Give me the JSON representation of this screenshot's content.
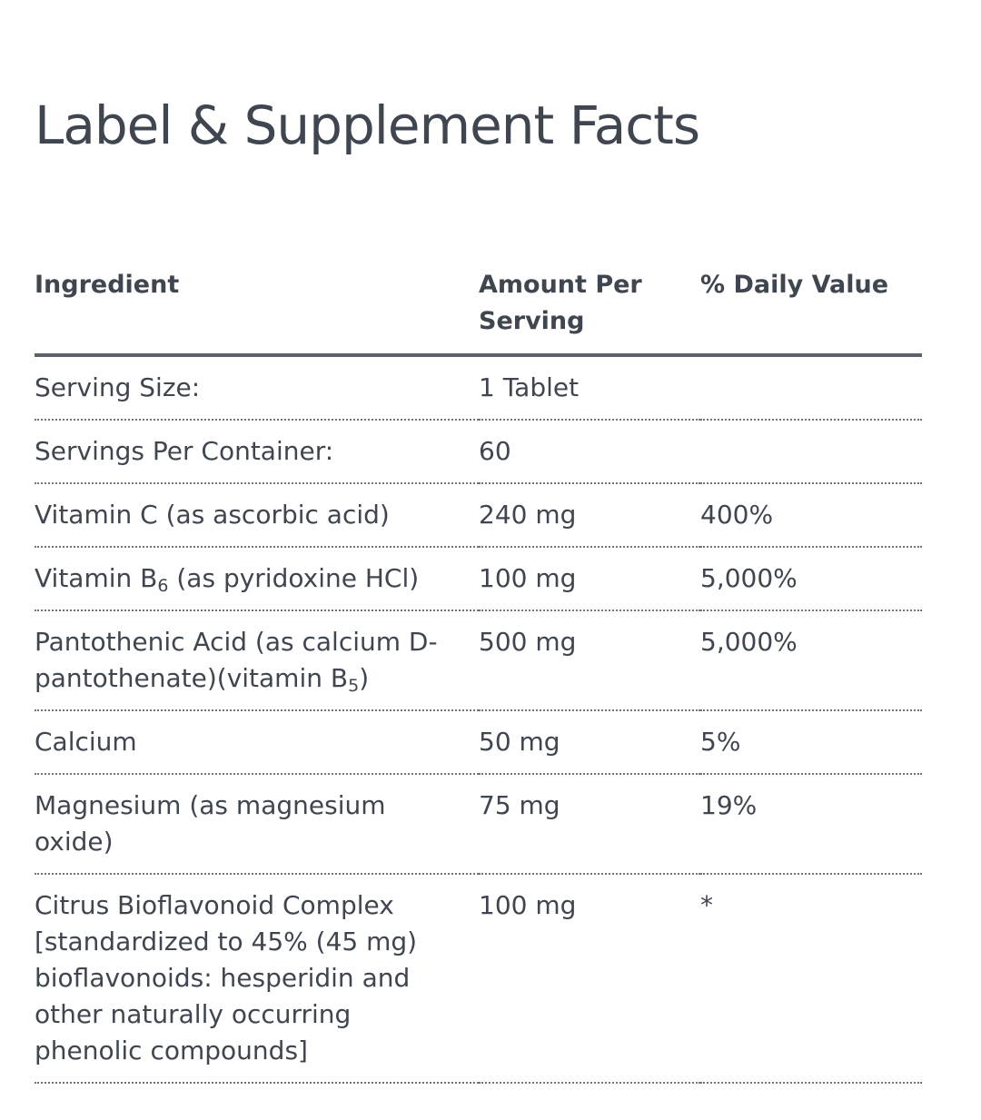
{
  "page": {
    "title": "Label & Supplement Facts"
  },
  "table": {
    "headers": {
      "ingredient": "Ingredient",
      "amount": "Amount Per Serving",
      "daily_value": "% Daily Value"
    },
    "rows": [
      {
        "ingredient": "Serving Size:",
        "amount": "1 Tablet",
        "daily_value": ""
      },
      {
        "ingredient": "Servings Per Container:",
        "amount": "60",
        "daily_value": ""
      },
      {
        "ingredient": "Vitamin C (as ascorbic acid)",
        "amount": "240 mg",
        "daily_value": "400%"
      },
      {
        "ingredient_pre": "Vitamin B",
        "ingredient_sub": "6",
        "ingredient_post": " (as pyridoxine HCl)",
        "amount": "100 mg",
        "daily_value": "5,000%"
      },
      {
        "ingredient_pre": "Pantothenic Acid (as calcium D-pantothenate)(vitamin B",
        "ingredient_sub": "5",
        "ingredient_post": ")",
        "amount": "500 mg",
        "daily_value": "5,000%"
      },
      {
        "ingredient": "Calcium",
        "amount": "50 mg",
        "daily_value": "5%"
      },
      {
        "ingredient": "Magnesium (as magnesium oxide)",
        "amount": "75 mg",
        "daily_value": "19%"
      },
      {
        "ingredient": "Citrus Bioflavonoid Complex [standardized to 45% (45 mg) bioflavonoids: hesperidin and other naturally occurring phenolic compounds]",
        "amount": "100 mg",
        "daily_value": "*"
      }
    ]
  }
}
